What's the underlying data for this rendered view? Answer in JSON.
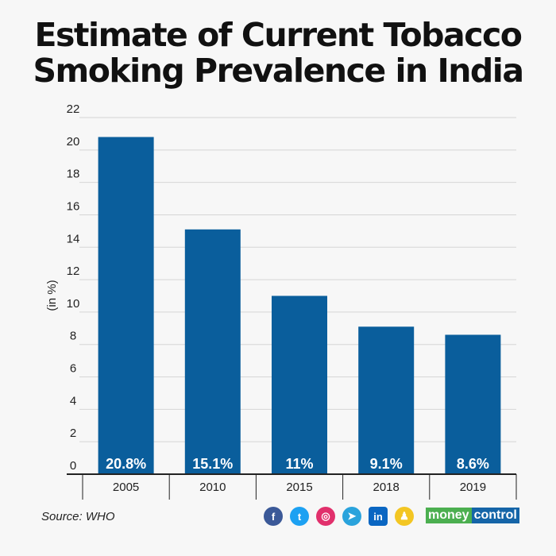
{
  "chart_data": {
    "type": "bar",
    "title": "Estimate of Current Tobacco Smoking Prevalence in India",
    "ylabel": "(in %)",
    "xlabel": "",
    "categories": [
      "2005",
      "2010",
      "2015",
      "2018",
      "2019"
    ],
    "values": [
      20.8,
      15.1,
      11,
      9.1,
      8.6
    ],
    "data_labels": [
      "20.8%",
      "15.1%",
      "11%",
      "9.1%",
      "8.6%"
    ],
    "ylim": [
      0,
      22
    ],
    "yticks": [
      "0",
      "2",
      "4",
      "6",
      "8",
      "10",
      "12",
      "14",
      "16",
      "18",
      "20",
      "22"
    ],
    "grid": true,
    "bar_color": "#0a5e9c"
  },
  "footer": {
    "source": "Source: WHO",
    "brand_left": "money",
    "brand_right": "control"
  },
  "social_icons": [
    "facebook-icon",
    "twitter-icon",
    "instagram-icon",
    "telegram-icon",
    "linkedin-icon",
    "koo-icon"
  ]
}
